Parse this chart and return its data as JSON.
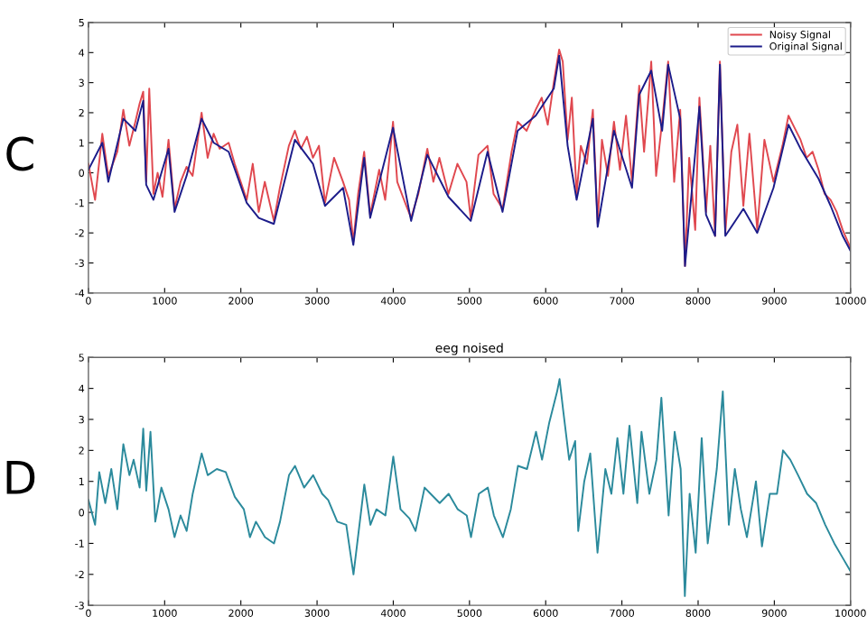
{
  "chart_data": [
    {
      "type": "line",
      "annotations": [
        "C"
      ],
      "xlim": [
        0,
        10000
      ],
      "xticks": [
        0,
        1000,
        2000,
        3000,
        4000,
        5000,
        6000,
        7000,
        8000,
        9000,
        10000
      ],
      "ylim": [
        -4,
        5
      ],
      "yticks": [
        -4,
        -3,
        -2,
        -1,
        0,
        1,
        2,
        3,
        4,
        5
      ],
      "grid": false,
      "legend": "top right",
      "marker": "none",
      "line_style": "solid",
      "series": [
        {
          "name": "Noisy Signal",
          "color": "#e0484f",
          "x": [
            0,
            87,
            182,
            261,
            379,
            458,
            537,
            616,
            671,
            719,
            758,
            798,
            853,
            908,
            972,
            1051,
            1130,
            1209,
            1288,
            1367,
            1485,
            1564,
            1643,
            1722,
            1840,
            1919,
            1998,
            2077,
            2156,
            2235,
            2314,
            2433,
            2512,
            2630,
            2709,
            2788,
            2867,
            2946,
            3025,
            3104,
            3223,
            3341,
            3420,
            3476,
            3539,
            3618,
            3697,
            3815,
            3894,
            3997,
            4052,
            4171,
            4234,
            4329,
            4447,
            4526,
            4605,
            4724,
            4842,
            4961,
            5016,
            5118,
            5237,
            5316,
            5434,
            5553,
            5632,
            5750,
            5869,
            5948,
            6027,
            6106,
            6177,
            6224,
            6288,
            6343,
            6406,
            6461,
            6540,
            6619,
            6682,
            6738,
            6817,
            6896,
            6975,
            7054,
            7133,
            7227,
            7291,
            7385,
            7449,
            7528,
            7607,
            7686,
            7765,
            7828,
            7883,
            7962,
            8017,
            8104,
            8160,
            8223,
            8286,
            8357,
            8436,
            8515,
            8594,
            8673,
            8776,
            8870,
            8989,
            9107,
            9186,
            9265,
            9344,
            9423,
            9502,
            9581,
            9660,
            9739,
            9818,
            9897,
            10000
          ],
          "values": [
            0.3,
            -0.9,
            1.3,
            -0.1,
            0.7,
            2.1,
            0.9,
            1.7,
            2.3,
            2.7,
            -0.3,
            2.8,
            -0.7,
            0.0,
            -0.8,
            1.1,
            -1.2,
            -0.3,
            0.2,
            -0.1,
            2.0,
            0.5,
            1.3,
            0.8,
            1.0,
            0.3,
            -0.3,
            -0.9,
            0.3,
            -1.3,
            -0.3,
            -1.6,
            -0.5,
            0.9,
            1.4,
            0.8,
            1.2,
            0.5,
            0.9,
            -1.0,
            0.5,
            -0.3,
            -0.9,
            -2.3,
            -0.7,
            0.7,
            -1.4,
            0.1,
            -0.9,
            1.7,
            -0.3,
            -1.1,
            -1.5,
            -0.7,
            0.8,
            -0.3,
            0.5,
            -0.7,
            0.3,
            -0.3,
            -1.5,
            0.6,
            0.9,
            -0.7,
            -1.2,
            0.7,
            1.7,
            1.4,
            2.1,
            2.5,
            1.6,
            3.0,
            4.1,
            3.7,
            1.1,
            2.5,
            -0.7,
            0.9,
            0.3,
            2.1,
            -1.7,
            1.1,
            -0.1,
            1.7,
            0.1,
            1.9,
            -0.3,
            2.9,
            0.7,
            3.7,
            -0.1,
            1.7,
            3.7,
            -0.3,
            2.1,
            -3.1,
            0.5,
            -1.9,
            2.5,
            -1.3,
            0.9,
            -2.1,
            3.7,
            -2.0,
            0.7,
            1.6,
            -1.1,
            1.3,
            -1.9,
            1.1,
            -0.3,
            0.9,
            1.9,
            1.5,
            1.1,
            0.5,
            0.7,
            0.1,
            -0.7,
            -0.9,
            -1.3,
            -1.9,
            -2.5
          ]
        },
        {
          "name": "Original Signal",
          "color": "#1c1c8a",
          "x": [
            0,
            182,
            261,
            458,
            616,
            719,
            758,
            853,
            1051,
            1130,
            1288,
            1485,
            1643,
            1840,
            2077,
            2235,
            2433,
            2709,
            2946,
            3104,
            3341,
            3476,
            3618,
            3697,
            3997,
            4234,
            4447,
            4724,
            5016,
            5237,
            5434,
            5632,
            5869,
            6106,
            6177,
            6288,
            6406,
            6619,
            6682,
            6896,
            7133,
            7227,
            7385,
            7528,
            7607,
            7765,
            7828,
            8017,
            8104,
            8223,
            8286,
            8357,
            8594,
            8776,
            8989,
            9186,
            9344,
            9581,
            9739,
            9897,
            10000
          ],
          "values": [
            0.1,
            1.0,
            -0.3,
            1.8,
            1.4,
            2.4,
            -0.4,
            -0.9,
            0.8,
            -1.3,
            -0.1,
            1.8,
            1.0,
            0.7,
            -1.0,
            -1.5,
            -1.7,
            1.1,
            0.3,
            -1.1,
            -0.5,
            -2.4,
            0.5,
            -1.5,
            1.5,
            -1.6,
            0.6,
            -0.8,
            -1.6,
            0.7,
            -1.3,
            1.4,
            1.9,
            2.8,
            3.9,
            0.9,
            -0.9,
            1.8,
            -1.8,
            1.4,
            -0.5,
            2.6,
            3.4,
            1.4,
            3.6,
            1.8,
            -3.1,
            2.2,
            -1.4,
            -2.1,
            3.6,
            -2.1,
            -1.2,
            -2.0,
            -0.5,
            1.6,
            0.8,
            -0.2,
            -1.1,
            -2.1,
            -2.6
          ]
        }
      ]
    },
    {
      "type": "line",
      "title": "eeg noised",
      "annotations": [
        "D"
      ],
      "xlim": [
        0,
        10000
      ],
      "xticks": [
        0,
        1000,
        2000,
        3000,
        4000,
        5000,
        6000,
        7000,
        8000,
        9000,
        10000
      ],
      "ylim": [
        -3,
        5
      ],
      "yticks": [
        -3,
        -2,
        -1,
        0,
        1,
        2,
        3,
        4,
        5
      ],
      "grid": false,
      "marker": "none",
      "line_style": "solid",
      "series": [
        {
          "color": "#2b8a9c",
          "x": [
            0,
            87,
            142,
            221,
            300,
            379,
            458,
            538,
            593,
            672,
            719,
            759,
            814,
            877,
            957,
            1051,
            1130,
            1209,
            1289,
            1368,
            1486,
            1565,
            1684,
            1802,
            1921,
            2039,
            2119,
            2198,
            2316,
            2435,
            2514,
            2632,
            2711,
            2830,
            2949,
            3067,
            3146,
            3265,
            3383,
            3478,
            3581,
            3620,
            3700,
            3779,
            3897,
            4000,
            4095,
            4213,
            4292,
            4411,
            4490,
            4609,
            4727,
            4846,
            4964,
            5020,
            5123,
            5241,
            5320,
            5439,
            5542,
            5636,
            5755,
            5873,
            5952,
            6047,
            6150,
            6182,
            6229,
            6308,
            6387,
            6427,
            6506,
            6585,
            6680,
            6783,
            6862,
            6941,
            7020,
            7099,
            7202,
            7257,
            7360,
            7454,
            7518,
            7613,
            7692,
            7771,
            7826,
            7889,
            7968,
            8047,
            8126,
            8245,
            8324,
            8403,
            8482,
            8561,
            8640,
            8759,
            8838,
            8941,
            9035,
            9114,
            9209,
            9312,
            9430,
            9549,
            9668,
            9787,
            9905,
            10000
          ],
          "values": [
            0.4,
            -0.4,
            1.3,
            0.3,
            1.4,
            0.1,
            2.2,
            1.2,
            1.7,
            0.8,
            2.7,
            0.7,
            2.6,
            -0.3,
            0.8,
            0.1,
            -0.8,
            -0.1,
            -0.6,
            0.6,
            1.9,
            1.2,
            1.4,
            1.3,
            0.5,
            0.1,
            -0.8,
            -0.3,
            -0.8,
            -1.0,
            -0.3,
            1.2,
            1.5,
            0.8,
            1.2,
            0.6,
            0.4,
            -0.3,
            -0.4,
            -2.0,
            0.1,
            0.9,
            -0.4,
            0.1,
            -0.1,
            1.8,
            0.1,
            -0.2,
            -0.6,
            0.8,
            0.6,
            0.3,
            0.6,
            0.1,
            -0.1,
            -0.8,
            0.6,
            0.8,
            -0.1,
            -0.8,
            0.1,
            1.5,
            1.4,
            2.6,
            1.7,
            2.9,
            3.9,
            4.3,
            3.3,
            1.7,
            2.3,
            -0.6,
            1.0,
            1.9,
            -1.3,
            1.4,
            0.6,
            2.4,
            0.6,
            2.8,
            0.3,
            2.6,
            0.6,
            1.7,
            3.7,
            -0.1,
            2.6,
            1.4,
            -2.7,
            0.6,
            -1.3,
            2.4,
            -1.0,
            1.4,
            3.9,
            -0.4,
            1.4,
            0.1,
            -0.8,
            1.0,
            -1.1,
            0.6,
            0.6,
            2.0,
            1.7,
            1.2,
            0.6,
            0.3,
            -0.4,
            -1.0,
            -1.5,
            -1.9
          ]
        }
      ]
    }
  ]
}
